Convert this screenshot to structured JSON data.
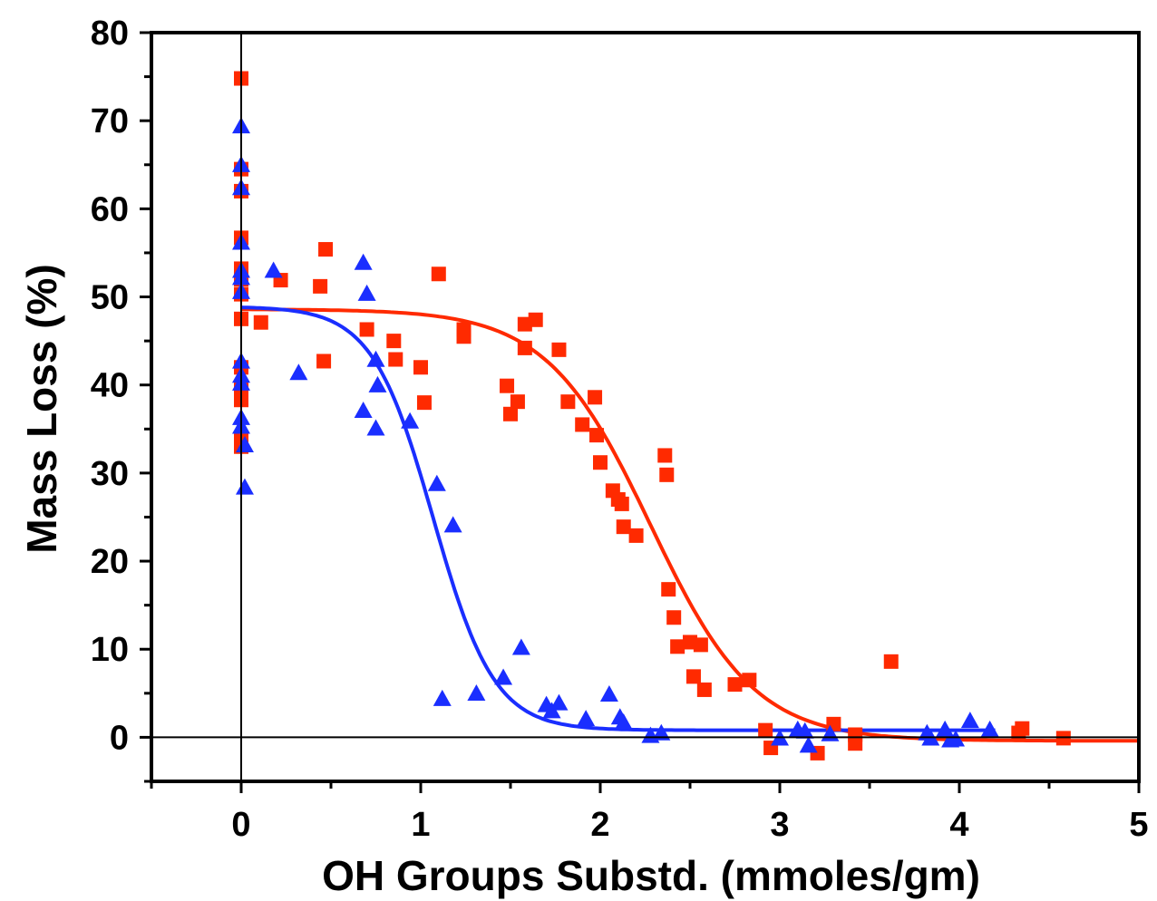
{
  "chart_data": {
    "type": "scatter",
    "title": "",
    "xlabel": "OH Groups Substd. (mmoles/gm)",
    "ylabel": "Mass Loss (%)",
    "xlim": [
      -0.5,
      5
    ],
    "ylim": [
      -5,
      80
    ],
    "xticks": [
      0,
      1,
      2,
      3,
      4,
      5
    ],
    "yticks": [
      0,
      10,
      20,
      30,
      40,
      50,
      60,
      70,
      80
    ],
    "grid": false,
    "legend": "none",
    "reference_lines": {
      "x": 0,
      "y": 0
    },
    "series": [
      {
        "marker": "square",
        "color": "#ff2a00",
        "points": [
          [
            0,
            74.8
          ],
          [
            0,
            64.5
          ],
          [
            0,
            62.0
          ],
          [
            0,
            56.7
          ],
          [
            0,
            53.2
          ],
          [
            0,
            52.0
          ],
          [
            0,
            50.3
          ],
          [
            0,
            47.5
          ],
          [
            0,
            42.0
          ],
          [
            0,
            39.8
          ],
          [
            0,
            38.3
          ],
          [
            0,
            34.0
          ],
          [
            0,
            33.0
          ],
          [
            0.11,
            47.1
          ],
          [
            0.22,
            51.9
          ],
          [
            0.44,
            51.2
          ],
          [
            0.47,
            55.4
          ],
          [
            0.46,
            42.7
          ],
          [
            0.7,
            46.3
          ],
          [
            0.85,
            45.0
          ],
          [
            0.86,
            42.9
          ],
          [
            1.0,
            42.0
          ],
          [
            1.02,
            38.0
          ],
          [
            1.1,
            52.6
          ],
          [
            1.24,
            46.3
          ],
          [
            1.24,
            45.5
          ],
          [
            1.48,
            39.9
          ],
          [
            1.5,
            36.7
          ],
          [
            1.54,
            38.1
          ],
          [
            1.58,
            44.2
          ],
          [
            1.58,
            46.9
          ],
          [
            1.64,
            47.4
          ],
          [
            1.77,
            44.0
          ],
          [
            1.82,
            38.1
          ],
          [
            1.9,
            35.5
          ],
          [
            1.97,
            38.6
          ],
          [
            1.98,
            34.3
          ],
          [
            2.0,
            31.2
          ],
          [
            2.07,
            28.0
          ],
          [
            2.1,
            27.0
          ],
          [
            2.12,
            26.5
          ],
          [
            2.13,
            23.9
          ],
          [
            2.2,
            22.9
          ],
          [
            2.36,
            32.0
          ],
          [
            2.37,
            29.8
          ],
          [
            2.38,
            16.8
          ],
          [
            2.41,
            13.6
          ],
          [
            2.43,
            10.3
          ],
          [
            2.5,
            10.8
          ],
          [
            2.52,
            6.9
          ],
          [
            2.56,
            10.5
          ],
          [
            2.58,
            5.4
          ],
          [
            2.75,
            6.0
          ],
          [
            2.83,
            6.5
          ],
          [
            2.92,
            0.8
          ],
          [
            2.95,
            -1.2
          ],
          [
            3.21,
            -1.8
          ],
          [
            3.3,
            1.5
          ],
          [
            3.42,
            0.3
          ],
          [
            3.42,
            -0.7
          ],
          [
            3.62,
            8.6
          ],
          [
            4.33,
            0.5
          ],
          [
            4.35,
            1.0
          ],
          [
            4.58,
            -0.1
          ]
        ]
      },
      {
        "marker": "triangle",
        "color": "#1a2eff",
        "points": [
          [
            0,
            69.3
          ],
          [
            0,
            64.9
          ],
          [
            0,
            62.3
          ],
          [
            0,
            56.1
          ],
          [
            0,
            52.9
          ],
          [
            0,
            52.1
          ],
          [
            0,
            50.5
          ],
          [
            0,
            42.6
          ],
          [
            0,
            41.0
          ],
          [
            0,
            40.1
          ],
          [
            0,
            36.2
          ],
          [
            0,
            35.2
          ],
          [
            0.02,
            33.1
          ],
          [
            0.02,
            28.3
          ],
          [
            0.18,
            52.9
          ],
          [
            0.32,
            41.3
          ],
          [
            0.68,
            53.8
          ],
          [
            0.7,
            50.3
          ],
          [
            0.68,
            37.0
          ],
          [
            0.75,
            35.0
          ],
          [
            0.75,
            42.8
          ],
          [
            0.76,
            39.9
          ],
          [
            0.94,
            35.8
          ],
          [
            1.09,
            28.7
          ],
          [
            1.18,
            24.0
          ],
          [
            1.12,
            4.3
          ],
          [
            1.31,
            4.9
          ],
          [
            1.46,
            6.7
          ],
          [
            1.56,
            10.1
          ],
          [
            1.7,
            3.6
          ],
          [
            1.73,
            2.9
          ],
          [
            1.77,
            3.8
          ],
          [
            1.92,
            2.0
          ],
          [
            2.05,
            4.8
          ],
          [
            2.11,
            2.2
          ],
          [
            2.13,
            1.6
          ],
          [
            2.28,
            0.1
          ],
          [
            2.34,
            0.4
          ],
          [
            3.0,
            -0.2
          ],
          [
            3.1,
            0.8
          ],
          [
            3.14,
            0.6
          ],
          [
            3.16,
            -1.0
          ],
          [
            3.28,
            0.3
          ],
          [
            3.82,
            0.4
          ],
          [
            3.84,
            -0.2
          ],
          [
            3.92,
            0.8
          ],
          [
            3.95,
            -0.4
          ],
          [
            3.98,
            -0.3
          ],
          [
            4.06,
            1.8
          ],
          [
            4.17,
            0.8
          ]
        ]
      }
    ],
    "fits": [
      {
        "color": "#ff2a00",
        "type": "sigmoid",
        "top": 48.6,
        "bottom": -0.4,
        "x0": 2.28,
        "slope": 0.29,
        "x": [
          0,
          5
        ]
      },
      {
        "color": "#1a2eff",
        "type": "sigmoid",
        "top": 48.9,
        "bottom": 0.8,
        "x0": 1.07,
        "slope": 0.17,
        "x": [
          0,
          4.2
        ]
      }
    ]
  }
}
